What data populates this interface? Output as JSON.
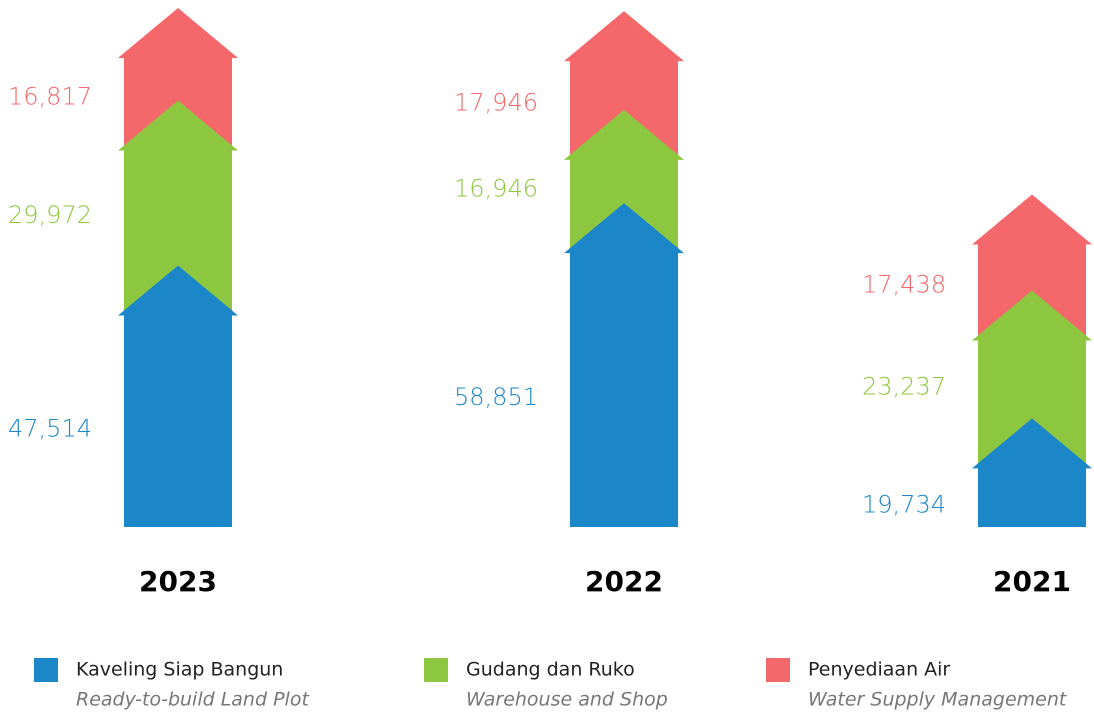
{
  "chart_data": {
    "type": "stacked-arrow",
    "categories": [
      "2023",
      "2022",
      "2021"
    ],
    "series": [
      {
        "name": "Kaveling Siap Bangun",
        "name_en": "Ready-to-build Land Plot",
        "color": "#1b87c9",
        "values": [
          47514,
          58851,
          19734
        ],
        "value_labels": [
          "47,514",
          "58,851",
          "19,734"
        ]
      },
      {
        "name": "Gudang dan Ruko",
        "name_en": "Warehouse and Shop",
        "color": "#8dc63f",
        "values": [
          29972,
          16946,
          23237
        ],
        "value_labels": [
          "29,972",
          "16,946",
          "23,237"
        ]
      },
      {
        "name": "Penyediaan Air",
        "name_en": "Water Supply Management",
        "color": "#f4676a",
        "values": [
          16817,
          17946,
          17438
        ],
        "value_labels": [
          "16,817",
          "17,946",
          "17,438"
        ]
      }
    ]
  }
}
